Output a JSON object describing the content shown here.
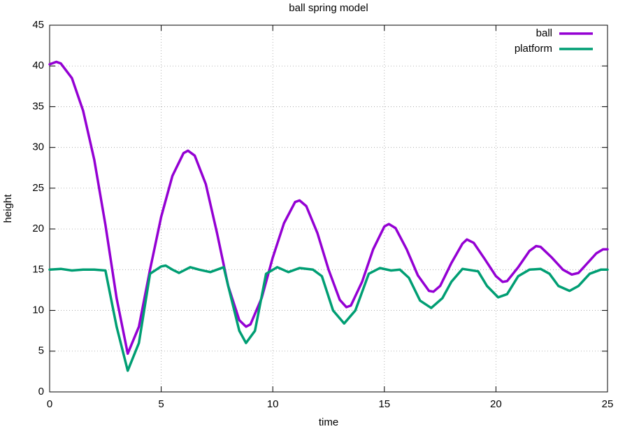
{
  "chart_data": {
    "type": "line",
    "title": "ball spring model",
    "xlabel": "time",
    "ylabel": "height",
    "xlim": [
      0,
      25
    ],
    "xticks": [
      0,
      5,
      10,
      15,
      20,
      25
    ],
    "ylim": [
      0,
      45
    ],
    "yticks": [
      0,
      5,
      10,
      15,
      20,
      25,
      30,
      35,
      40,
      45
    ],
    "grid": true,
    "legend": "top-right",
    "series": [
      {
        "name": "ball",
        "color": "#9400d3",
        "x": [
          0,
          0.3,
          0.5,
          1,
          1.5,
          2,
          2.5,
          3,
          3.5,
          4,
          4.5,
          5,
          5.5,
          6,
          6.2,
          6.5,
          7,
          7.5,
          8,
          8.5,
          8.8,
          9,
          9.5,
          10,
          10.5,
          11,
          11.2,
          11.5,
          12,
          12.5,
          13,
          13.3,
          13.5,
          14,
          14.5,
          15,
          15.2,
          15.5,
          16,
          16.5,
          17,
          17.2,
          17.5,
          18,
          18.5,
          18.7,
          19,
          19.5,
          20,
          20.3,
          20.5,
          21,
          21.5,
          21.8,
          22,
          22.5,
          23,
          23.4,
          23.7,
          24,
          24.5,
          24.8,
          25
        ],
        "values": [
          40.2,
          40.5,
          40.3,
          38.5,
          34.5,
          28.5,
          20.5,
          11.5,
          4.7,
          8,
          15,
          21.5,
          26.5,
          29.3,
          29.6,
          29,
          25.5,
          19.5,
          13,
          8.8,
          8,
          8.3,
          11.5,
          16.5,
          20.7,
          23.3,
          23.5,
          22.8,
          19.5,
          15,
          11.3,
          10.4,
          10.6,
          13.5,
          17.5,
          20.3,
          20.6,
          20.1,
          17.5,
          14.3,
          12.4,
          12.3,
          13,
          15.8,
          18.2,
          18.7,
          18.3,
          16.3,
          14.2,
          13.5,
          13.6,
          15.3,
          17.3,
          17.9,
          17.8,
          16.5,
          15,
          14.4,
          14.6,
          15.5,
          17,
          17.5,
          17.5
        ]
      },
      {
        "name": "platform",
        "color": "#009e73",
        "x": [
          0,
          0.5,
          1,
          1.5,
          2,
          2.5,
          3,
          3.5,
          4,
          4.5,
          5,
          5.2,
          5.5,
          5.8,
          6.3,
          6.7,
          7.2,
          7.8,
          8,
          8.5,
          8.8,
          9.2,
          9.7,
          10.2,
          10.7,
          11.2,
          11.8,
          12.2,
          12.7,
          13.2,
          13.7,
          14.3,
          14.8,
          15.3,
          15.7,
          16.1,
          16.6,
          17.1,
          17.6,
          18,
          18.5,
          19.2,
          19.6,
          20.1,
          20.5,
          21,
          21.5,
          22,
          22.4,
          22.8,
          23.3,
          23.7,
          24.2,
          24.7,
          25
        ],
        "values": [
          15,
          15.1,
          14.9,
          15,
          15,
          14.9,
          8,
          2.6,
          6,
          14.5,
          15.4,
          15.5,
          15,
          14.6,
          15.3,
          15,
          14.7,
          15.3,
          13,
          7.5,
          6,
          7.5,
          14.5,
          15.3,
          14.7,
          15.2,
          15,
          14.2,
          10,
          8.4,
          10,
          14.5,
          15.2,
          14.9,
          15,
          14,
          11.2,
          10.3,
          11.5,
          13.5,
          15.1,
          14.8,
          13,
          11.6,
          12,
          14.2,
          15,
          15.1,
          14.5,
          13,
          12.4,
          13,
          14.5,
          15,
          15
        ]
      }
    ]
  }
}
